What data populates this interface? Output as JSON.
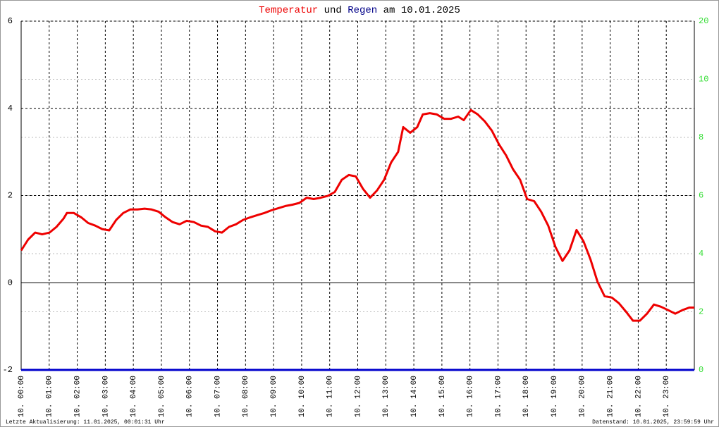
{
  "chart_data": {
    "type": "line",
    "title_and": "und",
    "title_suffix": "am 10.01.2025",
    "footer_left": "Letzte Aktualisierung: 11.01.2025, 00:01:31 Uhr",
    "footer_right": "Datenstand: 10.01.2025, 23:59:59 Uhr",
    "xlim": [
      0,
      24
    ],
    "xticks": [
      {
        "value": 0,
        "label": "10. 00:00"
      },
      {
        "value": 1,
        "label": "10. 01:00"
      },
      {
        "value": 2,
        "label": "10. 02:00"
      },
      {
        "value": 3,
        "label": "10. 03:00"
      },
      {
        "value": 4,
        "label": "10. 04:00"
      },
      {
        "value": 5,
        "label": "10. 05:00"
      },
      {
        "value": 6,
        "label": "10. 06:00"
      },
      {
        "value": 7,
        "label": "10. 07:00"
      },
      {
        "value": 8,
        "label": "10. 08:00"
      },
      {
        "value": 9,
        "label": "10. 09:00"
      },
      {
        "value": 10,
        "label": "10. 10:00"
      },
      {
        "value": 11,
        "label": "10. 11:00"
      },
      {
        "value": 12,
        "label": "10. 12:00"
      },
      {
        "value": 13,
        "label": "10. 13:00"
      },
      {
        "value": 14,
        "label": "10. 14:00"
      },
      {
        "value": 15,
        "label": "10. 15:00"
      },
      {
        "value": 16,
        "label": "10. 16:00"
      },
      {
        "value": 17,
        "label": "10. 17:00"
      },
      {
        "value": 18,
        "label": "10. 18:00"
      },
      {
        "value": 19,
        "label": "10. 19:00"
      },
      {
        "value": 20,
        "label": "10. 20:00"
      },
      {
        "value": 21,
        "label": "10. 21:00"
      },
      {
        "value": 22,
        "label": "10. 22:00"
      },
      {
        "value": 23,
        "label": "10. 23:00"
      }
    ],
    "ylim": [
      -2,
      6
    ],
    "yticks": [
      -2,
      0,
      2,
      4,
      6
    ],
    "y2lim": [
      0,
      20
    ],
    "y2ticks": [
      0,
      2,
      4,
      6,
      8,
      10,
      20
    ],
    "y2tick_color": "#33dd33",
    "grid": true,
    "series": [
      {
        "name": "Temperatur",
        "color": "#ee0000",
        "x": [
          0,
          0.25,
          0.5,
          0.75,
          1.01,
          1.26,
          1.51,
          1.63,
          1.88,
          2.14,
          2.39,
          2.64,
          2.89,
          3.14,
          3.39,
          3.64,
          3.89,
          4.15,
          4.4,
          4.65,
          4.9,
          5.15,
          5.4,
          5.65,
          5.9,
          6.16,
          6.41,
          6.66,
          6.91,
          7.16,
          7.41,
          7.66,
          7.91,
          8.17,
          8.42,
          8.67,
          8.92,
          9.17,
          9.42,
          9.67,
          9.92,
          10.18,
          10.43,
          10.68,
          10.93,
          11.18,
          11.43,
          11.68,
          11.93,
          12.19,
          12.44,
          12.69,
          12.94,
          13.19,
          13.44,
          13.62,
          13.87,
          14.12,
          14.32,
          14.57,
          14.82,
          15.08,
          15.33,
          15.58,
          15.78,
          16.03,
          16.28,
          16.53,
          16.78,
          17.04,
          17.29,
          17.54,
          17.79,
          18.04,
          18.29,
          18.54,
          18.79,
          19.05,
          19.3,
          19.55,
          19.8,
          20.05,
          20.3,
          20.55,
          20.8,
          21.06,
          21.31,
          21.56,
          21.81,
          22.06,
          22.31,
          22.56,
          22.81,
          23.07,
          23.32,
          23.57,
          23.82,
          24
        ],
        "values": [
          0.74,
          0.99,
          1.15,
          1.11,
          1.15,
          1.28,
          1.47,
          1.6,
          1.6,
          1.5,
          1.37,
          1.31,
          1.23,
          1.2,
          1.44,
          1.6,
          1.68,
          1.68,
          1.7,
          1.68,
          1.63,
          1.5,
          1.39,
          1.34,
          1.42,
          1.39,
          1.31,
          1.28,
          1.18,
          1.15,
          1.28,
          1.34,
          1.44,
          1.5,
          1.55,
          1.6,
          1.66,
          1.71,
          1.76,
          1.79,
          1.83,
          1.95,
          1.92,
          1.95,
          1.99,
          2.08,
          2.36,
          2.47,
          2.44,
          2.15,
          1.95,
          2.12,
          2.36,
          2.76,
          3.0,
          3.57,
          3.44,
          3.57,
          3.86,
          3.89,
          3.86,
          3.76,
          3.76,
          3.81,
          3.73,
          3.96,
          3.86,
          3.7,
          3.49,
          3.17,
          2.92,
          2.6,
          2.36,
          1.92,
          1.87,
          1.63,
          1.31,
          0.82,
          0.5,
          0.74,
          1.21,
          0.95,
          0.53,
          0.02,
          -0.31,
          -0.34,
          -0.47,
          -0.66,
          -0.87,
          -0.87,
          -0.71,
          -0.5,
          -0.55,
          -0.63,
          -0.71,
          -0.63,
          -0.57,
          -0.57
        ]
      },
      {
        "name": "Regen",
        "color": "#0000cc",
        "axis": "y2",
        "x": [
          0,
          24
        ],
        "values": [
          0,
          0
        ]
      }
    ]
  }
}
